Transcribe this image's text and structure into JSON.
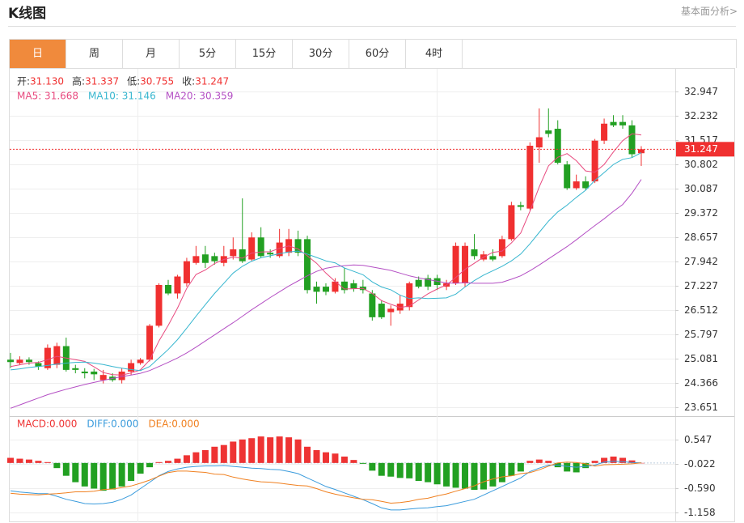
{
  "header": {
    "title": "K线图",
    "link": "基本面分析>"
  },
  "tabs": [
    "日",
    "周",
    "月",
    "5分",
    "15分",
    "30分",
    "60分",
    "4时"
  ],
  "active_tab": 0,
  "chart_data": [
    {
      "type": "candlestick",
      "info": [
        {
          "label": "开:",
          "value": "31.130"
        },
        {
          "label": "高:",
          "value": "31.337"
        },
        {
          "label": "低:",
          "value": "30.755"
        },
        {
          "label": "收:",
          "value": "31.247"
        }
      ],
      "up_color": "#f03030",
      "down_color": "#22a022",
      "open": [
        25.05,
        24.95,
        25.05,
        24.95,
        24.8,
        24.9,
        25.45,
        24.8,
        24.7,
        24.7,
        24.45,
        24.55,
        24.45,
        24.7,
        24.95,
        25.05,
        26.05,
        27.25,
        27.0,
        27.3,
        27.9,
        28.15,
        28.1,
        27.9,
        28.1,
        28.3,
        28.0,
        28.65,
        28.2,
        28.1,
        28.2,
        28.6,
        28.6,
        27.2,
        27.2,
        27.05,
        27.35,
        27.3,
        27.2,
        27.0,
        26.7,
        26.45,
        26.5,
        26.6,
        27.4,
        27.45,
        27.45,
        27.2,
        27.3,
        27.3,
        28.3,
        28.0,
        28.1,
        28.1,
        28.6,
        29.6,
        29.5,
        31.3,
        31.8,
        31.85,
        30.8,
        30.1,
        30.3,
        30.3,
        31.5,
        32.05,
        32.05,
        31.95,
        31.13
      ],
      "high": [
        25.25,
        25.15,
        25.12,
        25.0,
        25.5,
        25.55,
        25.7,
        24.9,
        24.8,
        24.78,
        24.75,
        24.65,
        24.8,
        25.05,
        25.1,
        26.1,
        27.3,
        27.4,
        27.55,
        28.05,
        28.4,
        28.4,
        28.2,
        28.4,
        28.65,
        29.8,
        28.8,
        28.95,
        28.3,
        28.9,
        28.9,
        28.85,
        28.7,
        27.35,
        27.3,
        27.45,
        27.75,
        27.4,
        27.4,
        27.1,
        26.8,
        26.65,
        26.95,
        27.35,
        27.5,
        27.55,
        27.55,
        27.4,
        28.5,
        28.5,
        28.75,
        28.25,
        28.3,
        28.7,
        29.7,
        29.7,
        31.45,
        32.45,
        32.45,
        32.1,
        30.9,
        30.5,
        30.45,
        31.55,
        32.15,
        32.25,
        32.25,
        32.1,
        31.337
      ],
      "low": [
        24.8,
        24.9,
        24.9,
        24.75,
        24.75,
        24.8,
        24.7,
        24.65,
        24.5,
        24.45,
        24.35,
        24.4,
        24.35,
        24.6,
        24.9,
        25.0,
        26.0,
        26.95,
        26.85,
        27.2,
        27.85,
        27.75,
        27.85,
        27.8,
        28.0,
        27.9,
        27.95,
        28.05,
        28.05,
        28.05,
        28.1,
        28.1,
        27.0,
        26.7,
        26.95,
        27.0,
        27.0,
        27.05,
        27.0,
        26.2,
        26.25,
        26.05,
        26.4,
        26.5,
        27.15,
        27.1,
        27.1,
        27.1,
        27.25,
        27.2,
        28.0,
        27.95,
        27.95,
        28.05,
        28.55,
        29.45,
        29.45,
        30.85,
        31.6,
        30.8,
        30.05,
        30.05,
        30.05,
        30.25,
        31.4,
        31.9,
        31.85,
        31.0,
        30.755
      ],
      "close": [
        24.98,
        25.05,
        24.98,
        24.85,
        25.4,
        25.45,
        24.75,
        24.75,
        24.65,
        24.62,
        24.6,
        24.45,
        24.7,
        24.95,
        25.05,
        26.05,
        27.25,
        27.0,
        27.5,
        27.95,
        28.1,
        27.9,
        27.95,
        28.1,
        28.3,
        27.95,
        28.65,
        28.1,
        28.15,
        28.5,
        28.6,
        28.2,
        27.1,
        27.05,
        27.05,
        27.35,
        27.1,
        27.15,
        27.1,
        26.3,
        26.3,
        26.55,
        26.7,
        27.3,
        27.2,
        27.2,
        27.25,
        27.3,
        28.4,
        28.4,
        28.1,
        28.15,
        28.0,
        28.6,
        29.6,
        29.55,
        31.35,
        31.6,
        31.7,
        30.85,
        30.1,
        30.3,
        30.1,
        31.5,
        32.0,
        31.95,
        31.95,
        31.1,
        31.247
      ],
      "series": [
        {
          "label": "MA5: 31.668",
          "color": "#e84a7f",
          "values": [
            24.85,
            24.9,
            24.95,
            24.97,
            25.05,
            25.15,
            25.1,
            25.05,
            25.0,
            24.84,
            24.67,
            24.61,
            24.6,
            24.66,
            24.75,
            25.04,
            25.6,
            26.06,
            26.57,
            27.15,
            27.56,
            27.69,
            27.88,
            28.0,
            28.07,
            28.04,
            28.19,
            28.22,
            28.23,
            28.33,
            28.4,
            28.31,
            28.11,
            27.89,
            27.6,
            27.35,
            27.13,
            27.14,
            27.15,
            27.0,
            26.79,
            26.68,
            26.59,
            26.63,
            26.81,
            26.99,
            27.13,
            27.25,
            27.47,
            27.71,
            27.89,
            28.07,
            28.21,
            28.25,
            28.49,
            28.78,
            29.42,
            30.14,
            30.76,
            31.01,
            31.12,
            30.91,
            30.61,
            30.57,
            30.8,
            31.17,
            31.5,
            31.7,
            31.668
          ]
        },
        {
          "label": "MA10: 31.146",
          "color": "#37b6cf",
          "values": [
            24.75,
            24.78,
            24.82,
            24.85,
            24.88,
            24.92,
            24.95,
            24.97,
            24.98,
            24.95,
            24.91,
            24.85,
            24.8,
            24.76,
            24.73,
            24.85,
            25.1,
            25.35,
            25.64,
            25.98,
            26.33,
            26.67,
            27.0,
            27.3,
            27.6,
            27.8,
            27.95,
            28.05,
            28.11,
            28.17,
            28.22,
            28.25,
            28.16,
            28.06,
            27.96,
            27.9,
            27.75,
            27.65,
            27.55,
            27.34,
            27.19,
            27.11,
            26.95,
            26.85,
            26.87,
            26.85,
            26.86,
            26.87,
            26.98,
            27.19,
            27.38,
            27.54,
            27.67,
            27.8,
            27.96,
            28.16,
            28.46,
            28.8,
            29.13,
            29.4,
            29.6,
            29.83,
            30.04,
            30.33,
            30.56,
            30.8,
            30.95,
            31.0,
            31.146
          ]
        },
        {
          "label": "MA20: 30.359",
          "color": "#b44fc4",
          "values": [
            23.62,
            23.72,
            23.82,
            23.92,
            24.02,
            24.1,
            24.18,
            24.25,
            24.32,
            24.38,
            24.44,
            24.5,
            24.55,
            24.6,
            24.65,
            24.73,
            24.85,
            24.97,
            25.1,
            25.25,
            25.42,
            25.6,
            25.78,
            25.96,
            26.14,
            26.33,
            26.52,
            26.7,
            26.88,
            27.05,
            27.22,
            27.37,
            27.52,
            27.65,
            27.74,
            27.79,
            27.82,
            27.84,
            27.83,
            27.78,
            27.73,
            27.68,
            27.6,
            27.52,
            27.46,
            27.41,
            27.36,
            27.31,
            27.3,
            27.32,
            27.3,
            27.3,
            27.3,
            27.33,
            27.42,
            27.52,
            27.67,
            27.84,
            28.02,
            28.2,
            28.38,
            28.58,
            28.79,
            29.0,
            29.2,
            29.42,
            29.62,
            29.95,
            30.359
          ]
        }
      ],
      "last_price": 31.247,
      "ylim": [
        23.436,
        33.591
      ],
      "yticks": [
        32.947,
        32.232,
        31.517,
        30.802,
        30.087,
        29.372,
        28.657,
        27.942,
        27.227,
        26.512,
        25.797,
        25.081,
        24.366,
        23.651
      ],
      "grid": true
    },
    {
      "type": "macd",
      "histogram": {
        "label": "MACD:0.000",
        "color": "#ee3333",
        "down_color": "#22a022",
        "values": [
          0.12,
          0.1,
          0.08,
          0.05,
          0.02,
          -0.12,
          -0.3,
          -0.45,
          -0.55,
          -0.6,
          -0.65,
          -0.62,
          -0.55,
          -0.42,
          -0.25,
          -0.1,
          0.02,
          0.05,
          0.1,
          0.18,
          0.25,
          0.3,
          0.38,
          0.42,
          0.5,
          0.55,
          0.58,
          0.62,
          0.6,
          0.62,
          0.6,
          0.55,
          0.38,
          0.3,
          0.25,
          0.22,
          0.15,
          0.07,
          -0.02,
          -0.18,
          -0.3,
          -0.32,
          -0.35,
          -0.36,
          -0.42,
          -0.45,
          -0.5,
          -0.55,
          -0.58,
          -0.6,
          -0.63,
          -0.62,
          -0.55,
          -0.45,
          -0.3,
          -0.2,
          0.05,
          0.08,
          0.05,
          -0.1,
          -0.2,
          -0.22,
          -0.12,
          0.05,
          0.12,
          0.15,
          0.12,
          0.06,
          0
        ]
      },
      "series": [
        {
          "label": "DIFF:0.000",
          "color": "#3a9bdc",
          "values": [
            -0.65,
            -0.68,
            -0.7,
            -0.72,
            -0.72,
            -0.78,
            -0.85,
            -0.9,
            -0.95,
            -0.96,
            -0.95,
            -0.92,
            -0.85,
            -0.75,
            -0.6,
            -0.45,
            -0.3,
            -0.2,
            -0.14,
            -0.1,
            -0.08,
            -0.07,
            -0.07,
            -0.06,
            -0.08,
            -0.1,
            -0.12,
            -0.13,
            -0.15,
            -0.16,
            -0.2,
            -0.25,
            -0.35,
            -0.45,
            -0.55,
            -0.62,
            -0.7,
            -0.78,
            -0.86,
            -0.95,
            -1.05,
            -1.1,
            -1.1,
            -1.08,
            -1.06,
            -1.05,
            -1.02,
            -1.0,
            -0.95,
            -0.9,
            -0.85,
            -0.75,
            -0.65,
            -0.55,
            -0.45,
            -0.35,
            -0.2,
            -0.12,
            -0.05,
            -0.05,
            -0.08,
            -0.1,
            -0.08,
            -0.05,
            0.02,
            0.04,
            0.03,
            0.01,
            0
          ]
        },
        {
          "label": "DEA:0.000",
          "color": "#f08020",
          "values": [
            -0.71,
            -0.73,
            -0.74,
            -0.745,
            -0.73,
            -0.72,
            -0.7,
            -0.675,
            -0.675,
            -0.66,
            -0.625,
            -0.61,
            -0.575,
            -0.54,
            -0.475,
            -0.4,
            -0.31,
            -0.225,
            -0.19,
            -0.19,
            -0.205,
            -0.22,
            -0.26,
            -0.27,
            -0.33,
            -0.375,
            -0.41,
            -0.44,
            -0.45,
            -0.47,
            -0.5,
            -0.525,
            -0.54,
            -0.6,
            -0.675,
            -0.73,
            -0.775,
            -0.815,
            -0.85,
            -0.86,
            -0.9,
            -0.94,
            -0.925,
            -0.9,
            -0.85,
            -0.825,
            -0.77,
            -0.725,
            -0.66,
            -0.6,
            -0.535,
            -0.44,
            -0.375,
            -0.325,
            -0.3,
            -0.25,
            -0.225,
            -0.16,
            -0.075,
            0,
            0.02,
            0.01,
            -0.02,
            -0.075,
            -0.04,
            -0.035,
            -0.03,
            -0.02,
            0
          ]
        }
      ],
      "ylim": [
        -1.386,
        1.058
      ],
      "yticks": [
        0.547,
        -0.022,
        {
          "value": -0.59,
          "label": "-0.590"
        },
        -1.158
      ]
    }
  ]
}
